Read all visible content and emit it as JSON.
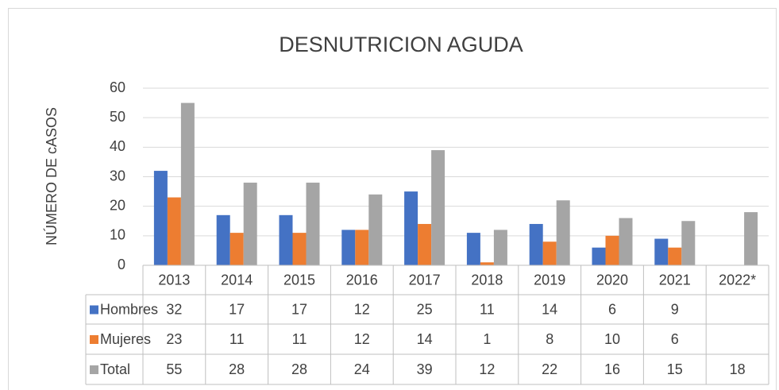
{
  "chart_data": {
    "type": "bar",
    "title": "DESNUTRICION AGUDA",
    "y_label": "NÚMERO DE cASOS",
    "categories": [
      "2013",
      "2014",
      "2015",
      "2016",
      "2017",
      "2018",
      "2019",
      "2020",
      "2021",
      "2022*"
    ],
    "series": [
      {
        "name": "Hombres",
        "color": "#4472c4",
        "values": [
          32,
          17,
          17,
          12,
          25,
          11,
          14,
          6,
          9,
          null
        ]
      },
      {
        "name": "Mujeres",
        "color": "#ed7d31",
        "values": [
          23,
          11,
          11,
          12,
          14,
          1,
          8,
          10,
          6,
          null
        ]
      },
      {
        "name": "Total",
        "color": "#a5a5a5",
        "values": [
          55,
          28,
          28,
          24,
          39,
          12,
          22,
          16,
          15,
          18
        ]
      }
    ],
    "ylim": [
      0,
      60
    ],
    "yticks": [
      0,
      10,
      20,
      30,
      40,
      50,
      60
    ],
    "grid": true,
    "data_table": true
  }
}
